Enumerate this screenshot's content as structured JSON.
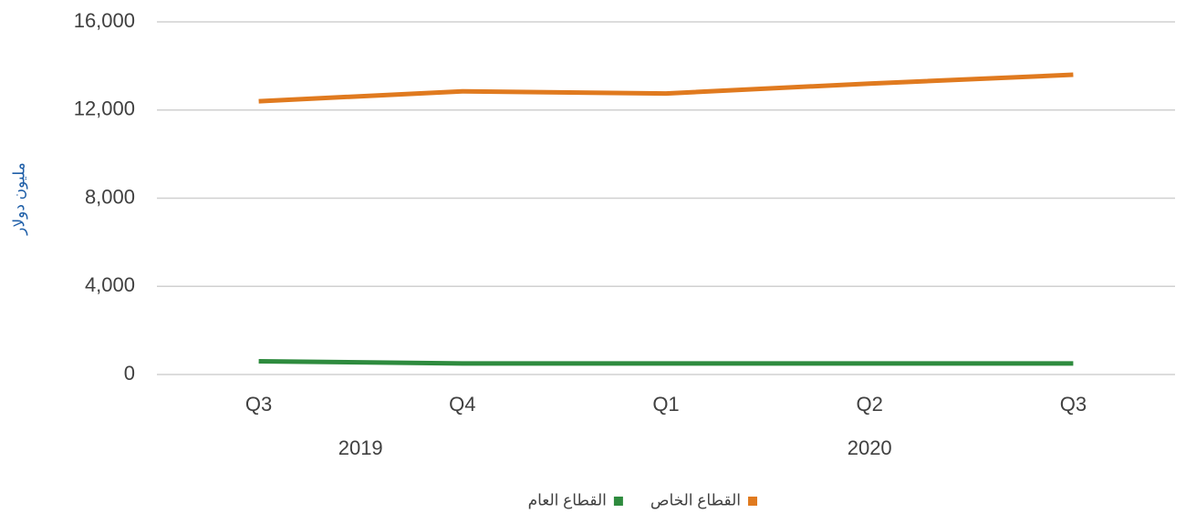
{
  "chart_data": {
    "type": "line",
    "y_label": "مليون دولار",
    "categories": [
      "Q3",
      "Q4",
      "Q1",
      "Q2",
      "Q3"
    ],
    "groups": [
      {
        "label": "2019",
        "count": 2
      },
      {
        "label": "2020",
        "count": 3
      }
    ],
    "series": [
      {
        "name": "القطاع الخاص",
        "color": "#e07a1f",
        "values": [
          12400,
          12850,
          12750,
          13200,
          13600
        ]
      },
      {
        "name": "القطاع العام",
        "color": "#2e8b3e",
        "values": [
          600,
          500,
          500,
          500,
          500
        ]
      }
    ],
    "ylim": [
      0,
      16000
    ],
    "yticks": [
      0,
      {
        "value": 4000,
        "label": "4,000"
      },
      {
        "value": 8000,
        "label": "8,000"
      },
      {
        "value": 12000,
        "label": "12,000"
      },
      {
        "value": 16000,
        "label": "16,000"
      }
    ],
    "grid": true
  }
}
